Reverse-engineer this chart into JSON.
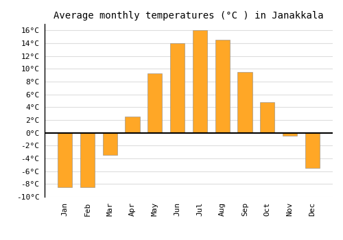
{
  "title": "Average monthly temperatures (°C ) in Janakkala",
  "months": [
    "Jan",
    "Feb",
    "Mar",
    "Apr",
    "May",
    "Jun",
    "Jul",
    "Aug",
    "Sep",
    "Oct",
    "Nov",
    "Dec"
  ],
  "temperatures": [
    -8.5,
    -8.5,
    -3.5,
    2.5,
    9.3,
    14.0,
    16.0,
    14.5,
    9.5,
    4.8,
    -0.5,
    -5.5
  ],
  "bar_color": "#FFA726",
  "bar_edge_color": "#888888",
  "ylim": [
    -10,
    17
  ],
  "yticks": [
    -10,
    -8,
    -6,
    -4,
    -2,
    0,
    2,
    4,
    6,
    8,
    10,
    12,
    14,
    16
  ],
  "ytick_labels": [
    "-10°C",
    "-8°C",
    "-6°C",
    "-4°C",
    "-2°C",
    "0°C",
    "2°C",
    "4°C",
    "6°C",
    "8°C",
    "10°C",
    "12°C",
    "14°C",
    "16°C"
  ],
  "background_color": "#ffffff",
  "plot_bg_color": "#ffffff",
  "grid_color": "#dddddd",
  "title_fontsize": 10,
  "tick_fontsize": 8,
  "bar_width": 0.65
}
